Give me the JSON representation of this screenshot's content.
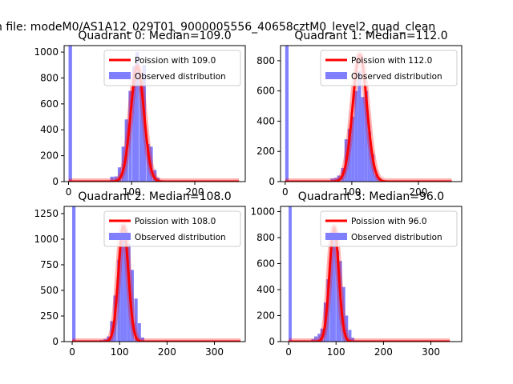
{
  "figure_title": "n file: modeM0/AS1A12_029T01_9000005556_40658cztM0_level2_quad_clean",
  "chart_data": [
    {
      "type": "bar",
      "title": "Quadrant 0: Median=109.0",
      "xlim": [
        -7,
        280
      ],
      "ylim": [
        0,
        1050
      ],
      "xticks": [
        0,
        100,
        200
      ],
      "yticks": [
        0,
        200,
        400,
        600,
        800,
        1000
      ],
      "legend": {
        "placement": "top-right",
        "entries": [
          "Poission with 109.0",
          "Observed distribution"
        ]
      },
      "series": [
        {
          "name": "Observed distribution",
          "kind": "histogram",
          "color": "#8080ff",
          "bin_width": 5.5,
          "bins": [
            [
              0,
              1050
            ],
            [
              66,
              38
            ],
            [
              72,
              40
            ],
            [
              78,
              110
            ],
            [
              84,
              270
            ],
            [
              89,
              480
            ],
            [
              95,
              700
            ],
            [
              101,
              890
            ],
            [
              106,
              1000
            ],
            [
              112,
              760
            ],
            [
              117,
              900
            ],
            [
              123,
              290
            ],
            [
              128,
              270
            ],
            [
              134,
              90
            ],
            [
              139,
              30
            ],
            [
              145,
              10
            ]
          ]
        },
        {
          "name": "Poission with 109.0",
          "kind": "poisson",
          "mean": 109.0,
          "peak": 890,
          "x_range": [
            0,
            270
          ],
          "color": "#ff0000"
        }
      ]
    },
    {
      "type": "bar",
      "title": "Quadrant 1: Median=112.0",
      "xlim": [
        -7,
        265
      ],
      "ylim": [
        0,
        900
      ],
      "xticks": [
        0,
        100,
        200
      ],
      "yticks": [
        0,
        200,
        400,
        600,
        800
      ],
      "legend": {
        "placement": "top-right",
        "entries": [
          "Poission with 112.0",
          "Observed distribution"
        ]
      },
      "series": [
        {
          "name": "Observed distribution",
          "kind": "histogram",
          "color": "#8080ff",
          "bin_width": 5,
          "bins": [
            [
              0,
              900
            ],
            [
              68,
              20
            ],
            [
              73,
              25
            ],
            [
              78,
              40
            ],
            [
              84,
              90
            ],
            [
              89,
              280
            ],
            [
              94,
              350
            ],
            [
              99,
              430
            ],
            [
              104,
              600
            ],
            [
              109,
              730
            ],
            [
              114,
              560
            ],
            [
              119,
              600
            ],
            [
              124,
              330
            ],
            [
              129,
              180
            ],
            [
              134,
              50
            ],
            [
              139,
              25
            ],
            [
              144,
              10
            ]
          ]
        },
        {
          "name": "Poission with 112.0",
          "kind": "poisson",
          "mean": 112.0,
          "peak": 840,
          "x_range": [
            0,
            250
          ],
          "color": "#ff0000"
        }
      ]
    },
    {
      "type": "bar",
      "title": "Quadrant 2: Median=108.0",
      "xlim": [
        -17,
        365
      ],
      "ylim": [
        0,
        1320
      ],
      "xticks": [
        0,
        100,
        200,
        300
      ],
      "yticks": [
        0,
        250,
        500,
        750,
        1000,
        1250
      ],
      "legend": {
        "placement": "top-right",
        "entries": [
          "Poission with 108.0",
          "Observed distribution"
        ]
      },
      "series": [
        {
          "name": "Observed distribution",
          "kind": "histogram",
          "color": "#8080ff",
          "bin_width": 7,
          "bins": [
            [
              0,
              1320
            ],
            [
              58,
              15
            ],
            [
              66,
              25
            ],
            [
              73,
              50
            ],
            [
              80,
              200
            ],
            [
              87,
              450
            ],
            [
              95,
              800
            ],
            [
              102,
              1020
            ],
            [
              109,
              1100
            ],
            [
              116,
              950
            ],
            [
              123,
              700
            ],
            [
              131,
              420
            ],
            [
              138,
              180
            ],
            [
              145,
              40
            ],
            [
              152,
              10
            ]
          ]
        },
        {
          "name": "Poission with 108.0",
          "kind": "poisson",
          "mean": 108.0,
          "peak": 1130,
          "x_range": [
            0,
            355
          ],
          "color": "#ff0000"
        }
      ]
    },
    {
      "type": "bar",
      "title": "Quadrant 3: Median=96.0",
      "xlim": [
        -17,
        365
      ],
      "ylim": [
        0,
        1040
      ],
      "xticks": [
        0,
        100,
        200,
        300
      ],
      "yticks": [
        0,
        200,
        400,
        600,
        800,
        1000
      ],
      "legend": {
        "placement": "top-right",
        "entries": [
          "Poission with 96.0",
          "Observed distribution"
        ]
      },
      "series": [
        {
          "name": "Observed distribution",
          "kind": "histogram",
          "color": "#8080ff",
          "bin_width": 6.5,
          "bins": [
            [
              0,
              1040
            ],
            [
              48,
              20
            ],
            [
              54,
              40
            ],
            [
              61,
              60
            ],
            [
              67,
              100
            ],
            [
              74,
              300
            ],
            [
              80,
              480
            ],
            [
              87,
              750
            ],
            [
              93,
              880
            ],
            [
              100,
              700
            ],
            [
              106,
              620
            ],
            [
              113,
              420
            ],
            [
              119,
              200
            ],
            [
              126,
              90
            ],
            [
              132,
              30
            ],
            [
              139,
              10
            ]
          ]
        },
        {
          "name": "Poission with 96.0",
          "kind": "poisson",
          "mean": 96.0,
          "peak": 880,
          "x_range": [
            0,
            340
          ],
          "color": "#ff0000"
        }
      ]
    }
  ]
}
